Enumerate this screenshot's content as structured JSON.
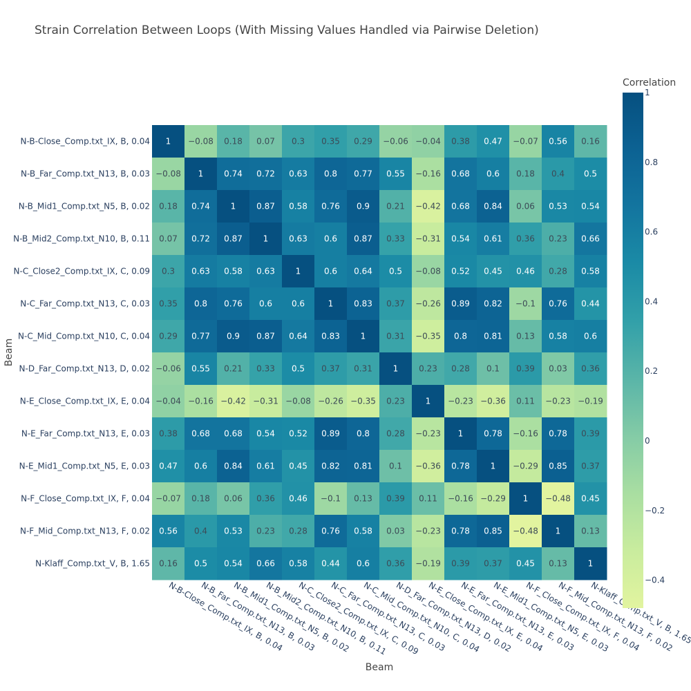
{
  "chart_data": {
    "type": "heatmap",
    "title": "Strain Correlation Between Loops (With Missing Values Handled via Pairwise Deletion)",
    "xlabel": "Beam",
    "ylabel": "Beam",
    "categories": [
      "N-B-Close_Comp.txt_IX, B, 0.04",
      "N-B_Far_Comp.txt_N13, B, 0.03",
      "N-B_Mid1_Comp.txt_N5, B, 0.02",
      "N-B_Mid2_Comp.txt_N10, B, 0.11",
      "N-C_Close2_Comp.txt_IX, C, 0.09",
      "N-C_Far_Comp.txt_N13, C, 0.03",
      "N-C_Mid_Comp.txt_N10, C, 0.04",
      "N-D_Far_Comp.txt_N13, D, 0.02",
      "N-E_Close_Comp.txt_IX, E, 0.04",
      "N-E_Far_Comp.txt_N13, E, 0.03",
      "N-E_Mid1_Comp.txt_N5, E, 0.03",
      "N-F_Close_Comp.txt_IX, F, 0.04",
      "N-F_Mid_Comp.txt_N13, F, 0.02",
      "N-Klaff_Comp.txt_V, B, 1.65"
    ],
    "z": [
      [
        1,
        -0.08,
        0.18,
        0.07,
        0.3,
        0.35,
        0.29,
        -0.06,
        -0.04,
        0.38,
        0.47,
        -0.07,
        0.56,
        0.16
      ],
      [
        -0.08,
        1,
        0.74,
        0.72,
        0.63,
        0.8,
        0.77,
        0.55,
        -0.16,
        0.68,
        0.6,
        0.18,
        0.4,
        0.5
      ],
      [
        0.18,
        0.74,
        1,
        0.87,
        0.58,
        0.76,
        0.9,
        0.21,
        -0.42,
        0.68,
        0.84,
        0.06,
        0.53,
        0.54
      ],
      [
        0.07,
        0.72,
        0.87,
        1,
        0.63,
        0.6,
        0.87,
        0.33,
        -0.31,
        0.54,
        0.61,
        0.36,
        0.23,
        0.66
      ],
      [
        0.3,
        0.63,
        0.58,
        0.63,
        1,
        0.6,
        0.64,
        0.5,
        -0.08,
        0.52,
        0.45,
        0.46,
        0.28,
        0.58
      ],
      [
        0.35,
        0.8,
        0.76,
        0.6,
        0.6,
        1,
        0.83,
        0.37,
        -0.26,
        0.89,
        0.82,
        -0.1,
        0.76,
        0.44
      ],
      [
        0.29,
        0.77,
        0.9,
        0.87,
        0.64,
        0.83,
        1,
        0.31,
        -0.35,
        0.8,
        0.81,
        0.13,
        0.58,
        0.6
      ],
      [
        -0.06,
        0.55,
        0.21,
        0.33,
        0.5,
        0.37,
        0.31,
        1,
        0.23,
        0.28,
        0.1,
        0.39,
        0.03,
        0.36
      ],
      [
        -0.04,
        -0.16,
        -0.42,
        -0.31,
        -0.08,
        -0.26,
        -0.35,
        0.23,
        1,
        -0.23,
        -0.36,
        0.11,
        -0.23,
        -0.19
      ],
      [
        0.38,
        0.68,
        0.68,
        0.54,
        0.52,
        0.89,
        0.8,
        0.28,
        -0.23,
        1,
        0.78,
        -0.16,
        0.78,
        0.39
      ],
      [
        0.47,
        0.6,
        0.84,
        0.61,
        0.45,
        0.82,
        0.81,
        0.1,
        -0.36,
        0.78,
        1,
        -0.29,
        0.85,
        0.37
      ],
      [
        -0.07,
        0.18,
        0.06,
        0.36,
        0.46,
        -0.1,
        0.13,
        0.39,
        0.11,
        -0.16,
        -0.29,
        1,
        -0.48,
        0.45
      ],
      [
        0.56,
        0.4,
        0.53,
        0.23,
        0.28,
        0.76,
        0.58,
        0.03,
        -0.23,
        0.78,
        0.85,
        -0.48,
        1,
        0.13
      ],
      [
        0.16,
        0.5,
        0.54,
        0.66,
        0.58,
        0.44,
        0.6,
        0.36,
        -0.19,
        0.39,
        0.37,
        0.45,
        0.13,
        1
      ]
    ],
    "zrange": [
      -0.48,
      1
    ],
    "colorscale": "Tealgrn-reversed",
    "colorscale_stops": [
      "#e2f49f",
      "#c9ec9e",
      "#a9dea1",
      "#84cba6",
      "#5ab5a8",
      "#32a0a9",
      "#1b8ba6",
      "#13759f",
      "#0c6293",
      "#065080"
    ],
    "colorbar": {
      "title": "Correlation",
      "ticks": [
        "1",
        "0.8",
        "0.6",
        "0.4",
        "0.2",
        "0",
        "−0.2",
        "−0.4"
      ],
      "tickvals": [
        1,
        0.8,
        0.6,
        0.4,
        0.2,
        0,
        -0.2,
        -0.4
      ]
    }
  }
}
